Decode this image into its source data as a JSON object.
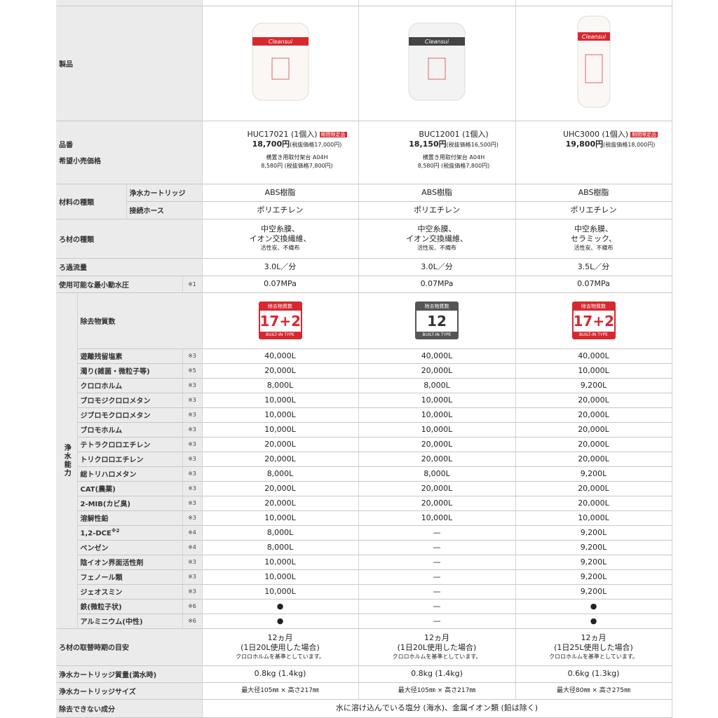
{
  "labels": {
    "product": "製品",
    "model": "品番",
    "price": "希望小売価格"
  },
  "products": [
    {
      "image_label": "Cleansui",
      "model": "HUC17021 (1個入)",
      "tag": "期間限定品",
      "price": "18,700円",
      "price_note": "(税抜価格17,000円)",
      "extra": [
        "横置き用取付架台 A04H",
        "8,580円 (税抜価格7,800円)"
      ],
      "badge": {
        "title": "除去物質数",
        "number": "17+2",
        "type": "BUILT-IN TYPE",
        "color": "#d7282f"
      }
    },
    {
      "image_label": "Cleansui",
      "model": "BUC12001 (1個入)",
      "price": "18,150円",
      "price_note": "(税抜価格16,500円)",
      "extra": [
        "横置き用取付架台 A04H",
        "8,580円 (税抜価格7,800円)"
      ],
      "badge": {
        "title": "除去物質数",
        "number": "12",
        "type": "BUILT-IN TYPE",
        "color": "#555555"
      }
    },
    {
      "image_label": "Cleansui",
      "model": "UHC3000 (1個入)",
      "tag": "期間限定品",
      "price": "19,800円",
      "price_note": "(税抜価格18,000円)",
      "extra": [],
      "badge": {
        "title": "除去物質数",
        "number": "17+2",
        "type": "BUILT-IN TYPE",
        "color": "#d7282f"
      }
    }
  ],
  "materials": {
    "label": "材料の種類",
    "rows": [
      {
        "label": "浄水カートリッジ",
        "values": [
          "ABS樹脂",
          "ABS樹脂",
          "ABS樹脂"
        ]
      },
      {
        "label": "接続ホース",
        "values": [
          "ポリエチレン",
          "ポリエチレン",
          "ポリエチレン"
        ]
      }
    ]
  },
  "rows_a": [
    {
      "label": "ろ材の種類",
      "values": [
        [
          "中空糸膜、",
          "イオン交換繊維、",
          "活性炭、不織布"
        ],
        [
          "中空糸膜、",
          "イオン交換繊維、",
          "活性炭、不織布"
        ],
        [
          "中空糸膜、",
          "セラミック、",
          "活性炭、不織布"
        ]
      ]
    },
    {
      "label": "ろ過流量",
      "values": [
        "3.0L／分",
        "3.0L／分",
        "3.5L／分"
      ]
    },
    {
      "label": "使用可能な最小動水圧",
      "note": "※1",
      "values": [
        "0.07MPa",
        "0.07MPa",
        "0.07MPa"
      ]
    }
  ],
  "capacity": {
    "label": "浄水能力",
    "count_label": "除去物質数",
    "rows": [
      {
        "label": "遊離残留塩素",
        "note": "※3",
        "values": [
          "40,000L",
          "40,000L",
          "40,000L"
        ]
      },
      {
        "label": "濁り(雑菌・微粒子等)",
        "note": "※5",
        "values": [
          "20,000L",
          "20,000L",
          "10,000L"
        ]
      },
      {
        "label": "クロロホルム",
        "note": "※3",
        "values": [
          "8,000L",
          "8,000L",
          "9,200L"
        ]
      },
      {
        "label": "ブロモジクロロメタン",
        "note": "※3",
        "values": [
          "10,000L",
          "10,000L",
          "20,000L"
        ]
      },
      {
        "label": "ジブロモクロロメタン",
        "note": "※3",
        "values": [
          "10,000L",
          "10,000L",
          "20,000L"
        ]
      },
      {
        "label": "ブロモホルム",
        "note": "※3",
        "values": [
          "10,000L",
          "10,000L",
          "20,000L"
        ]
      },
      {
        "label": "テトラクロロエチレン",
        "note": "※3",
        "values": [
          "20,000L",
          "20,000L",
          "20,000L"
        ]
      },
      {
        "label": "トリクロロエチレン",
        "note": "※3",
        "values": [
          "20,000L",
          "20,000L",
          "20,000L"
        ]
      },
      {
        "label": "総トリハロメタン",
        "note": "※3",
        "values": [
          "8,000L",
          "8,000L",
          "9,200L"
        ]
      },
      {
        "label": "CAT(農薬)",
        "note": "※3",
        "values": [
          "20,000L",
          "20,000L",
          "20,000L"
        ]
      },
      {
        "label": "2-MIB(カビ臭)",
        "note": "※3",
        "values": [
          "20,000L",
          "20,000L",
          "20,000L"
        ]
      },
      {
        "label": "溶解性鉛",
        "note": "※3",
        "values": [
          "10,000L",
          "10,000L",
          "10,000L"
        ]
      },
      {
        "label": "1,2-DCE",
        "sup": "※2",
        "note": "※4",
        "values": [
          "8,000L",
          "—",
          "9,200L"
        ]
      },
      {
        "label": "ベンゼン",
        "note": "※4",
        "values": [
          "8,000L",
          "—",
          "9,200L"
        ]
      },
      {
        "label": "陰イオン界面活性剤",
        "note": "※3",
        "values": [
          "10,000L",
          "—",
          "9,200L"
        ]
      },
      {
        "label": "フェノール類",
        "note": "※3",
        "values": [
          "10,000L",
          "—",
          "9,200L"
        ]
      },
      {
        "label": "ジェオスミン",
        "note": "※3",
        "values": [
          "10,000L",
          "—",
          "9,200L"
        ]
      },
      {
        "label": "鉄(微粒子状)",
        "note": "※6",
        "values": [
          "●",
          "—",
          "●"
        ]
      },
      {
        "label": "アルミニウム(中性)",
        "note": "※6",
        "values": [
          "●",
          "—",
          "●"
        ]
      }
    ]
  },
  "rows_b": [
    {
      "label": "ろ材の取替時期の目安",
      "values": [
        [
          "12ヵ月",
          "(1日20L使用した場合)",
          "クロロホルムを基準としています。"
        ],
        [
          "12ヵ月",
          "(1日20L使用した場合)",
          "クロロホルムを基準としています。"
        ],
        [
          "12ヵ月",
          "(1日25L使用した場合)",
          "クロロホルムを基準としています。"
        ]
      ]
    },
    {
      "label": "浄水カートリッジ質量(満水時)",
      "values": [
        "0.8kg (1.4kg)",
        "0.8kg (1.4kg)",
        "0.6kg (1.3kg)"
      ]
    },
    {
      "label": "浄水カートリッジサイズ",
      "values": [
        "最大径105㎜ × 高さ217㎜",
        "最大径105㎜ × 高さ217㎜",
        "最大径80㎜ × 高さ275㎜"
      ]
    }
  ],
  "last": {
    "label": "除去できない成分",
    "value": "水に溶け込んでいる塩分 (海水)、金属イオン類 (鉛は除く)"
  }
}
